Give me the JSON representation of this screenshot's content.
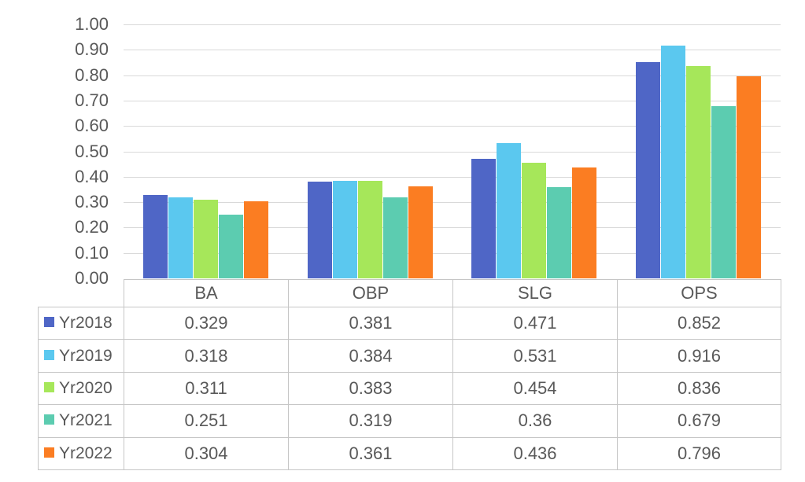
{
  "chart_data": {
    "type": "bar",
    "title": "",
    "xlabel": "",
    "ylabel": "",
    "categories": [
      "BA",
      "OBP",
      "SLG",
      "OPS"
    ],
    "series": [
      {
        "name": "Yr2018",
        "color": "#4f66c6",
        "values": [
          0.329,
          0.381,
          0.471,
          0.852
        ],
        "value_labels": [
          "0.329",
          "0.381",
          "0.471",
          "0.852"
        ]
      },
      {
        "name": "Yr2019",
        "color": "#5bc8ef",
        "values": [
          0.318,
          0.384,
          0.531,
          0.916
        ],
        "value_labels": [
          "0.318",
          "0.384",
          "0.531",
          "0.916"
        ]
      },
      {
        "name": "Yr2020",
        "color": "#a6e75a",
        "values": [
          0.311,
          0.383,
          0.454,
          0.836
        ],
        "value_labels": [
          "0.311",
          "0.383",
          "0.454",
          "0.836"
        ]
      },
      {
        "name": "Yr2021",
        "color": "#5cccb0",
        "values": [
          0.251,
          0.319,
          0.36,
          0.679
        ],
        "value_labels": [
          "0.251",
          "0.319",
          "0.36",
          "0.679"
        ]
      },
      {
        "name": "Yr2022",
        "color": "#fb7d22",
        "values": [
          0.304,
          0.361,
          0.436,
          0.796
        ],
        "value_labels": [
          "0.304",
          "0.361",
          "0.436",
          "0.796"
        ]
      }
    ],
    "y_axis": {
      "min": 0.0,
      "max": 1.0,
      "step": 0.1,
      "tick_labels": [
        "1.00",
        "0.90",
        "0.80",
        "0.70",
        "0.60",
        "0.50",
        "0.40",
        "0.30",
        "0.20",
        "0.10",
        "0.00"
      ]
    },
    "grid": true,
    "legend_position": "table-row-headers",
    "data_table_shown": true
  },
  "colors": {
    "background": "#ffffff",
    "gridline": "#d9d9d9",
    "table_border": "#c6c6c6",
    "text": "#595959"
  }
}
